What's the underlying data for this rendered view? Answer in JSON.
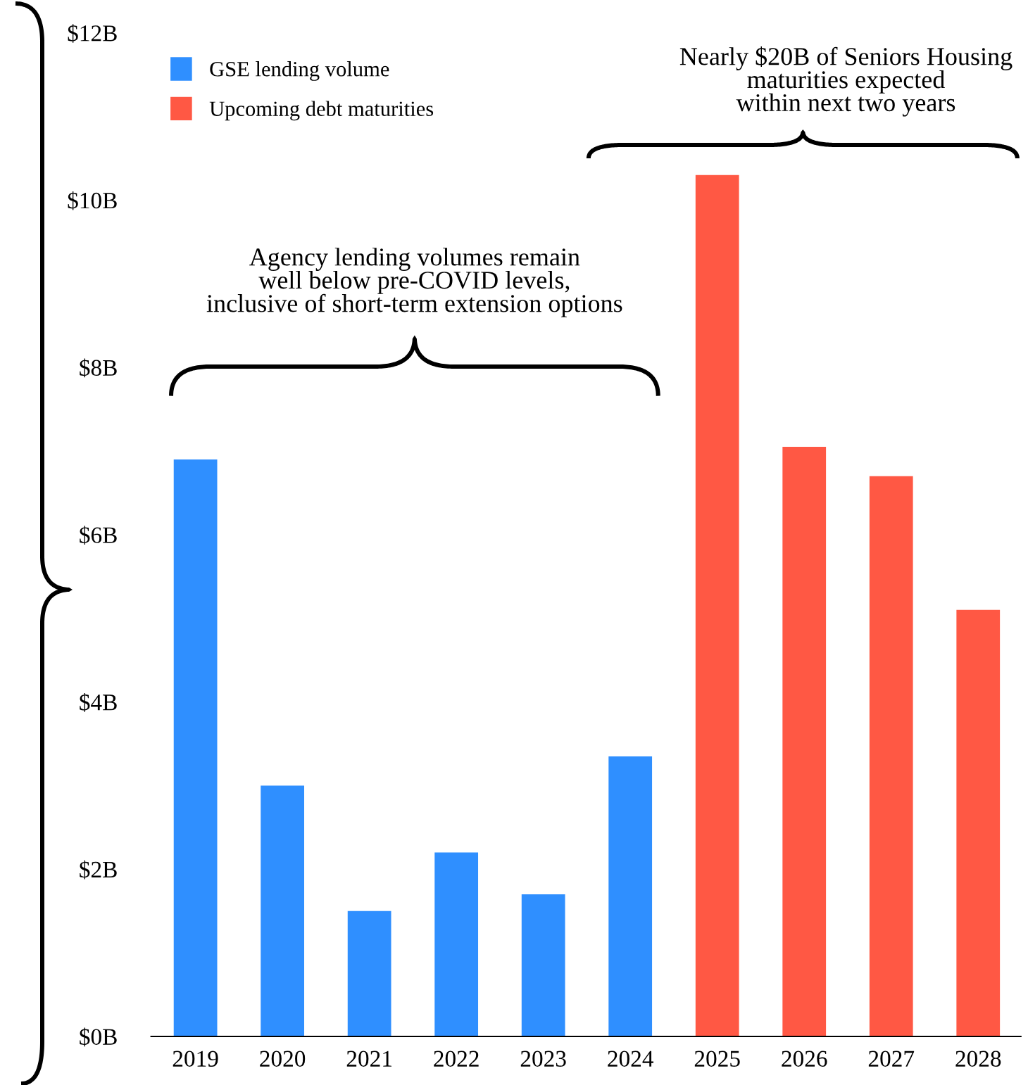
{
  "chart_data": {
    "type": "bar",
    "categories": [
      "2019",
      "2020",
      "2021",
      "2022",
      "2023",
      "2024",
      "2025",
      "2026",
      "2027",
      "2028"
    ],
    "series": [
      {
        "name": "GSE lending volume",
        "color": "#2f8fff",
        "values": [
          6.9,
          3.0,
          1.5,
          2.2,
          1.7,
          3.35,
          null,
          null,
          null,
          null
        ]
      },
      {
        "name": "Upcoming debt maturities",
        "color": "#ff5844",
        "values": [
          null,
          null,
          null,
          null,
          null,
          null,
          10.3,
          7.05,
          6.7,
          5.1
        ]
      }
    ],
    "ylim": [
      0,
      12
    ],
    "yticks": [
      {
        "value": 0,
        "label": "$0B"
      },
      {
        "value": 2,
        "label": "$2B"
      },
      {
        "value": 4,
        "label": "$4B"
      },
      {
        "value": 6,
        "label": "$6B"
      },
      {
        "value": 8,
        "label": "$8B"
      },
      {
        "value": 10,
        "label": "$10B"
      },
      {
        "value": 12,
        "label": "$12B"
      }
    ],
    "annotations": [
      "Agency lending volumes remain\nwell below pre-COVID levels,\ninclusive of short-term extension options",
      "Nearly $20B of Seniors Housing\nmaturities expected\nwithin next two years"
    ],
    "legend": "top left",
    "grid": false
  }
}
